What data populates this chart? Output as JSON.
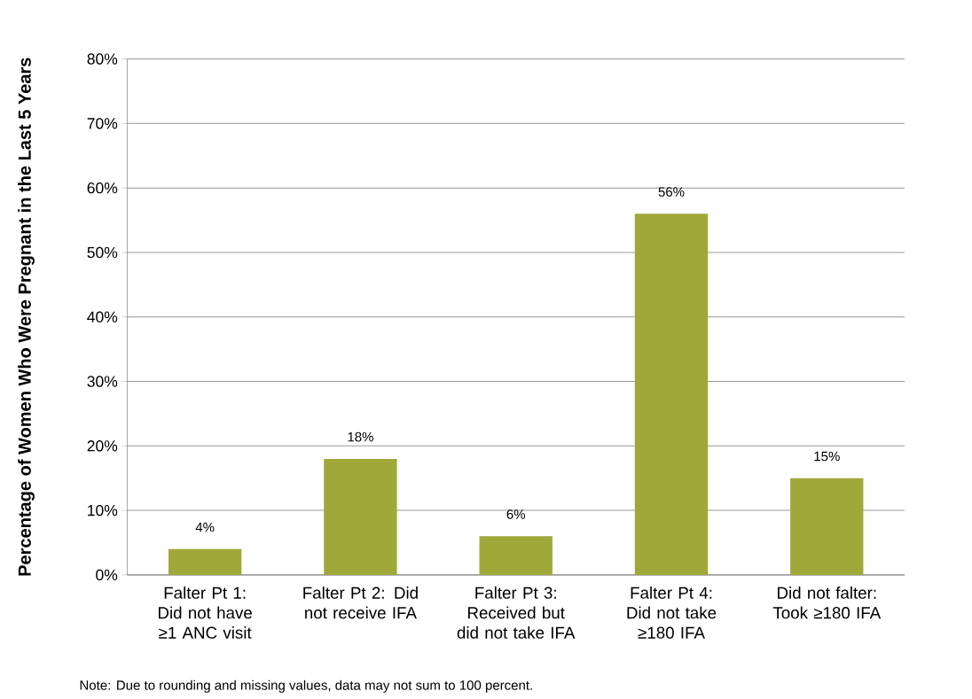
{
  "chart_data": {
    "type": "bar",
    "categories": [
      "Falter Pt 1: Did not have ≥1 ANC visit",
      "Falter Pt 2: Did not receive IFA",
      "Falter Pt 3: Received but did not take IFA",
      "Falter Pt 4: Did not take ≥180 IFA",
      "Did not falter: Took ≥180 IFA"
    ],
    "values": [
      4,
      18,
      6,
      56,
      15
    ],
    "value_labels": [
      "4%",
      "18%",
      "6%",
      "56%",
      "15%"
    ],
    "color": "#a0a83a",
    "ylabel": "Percentage of Women Who Were Pregnant in the Last 5 Years",
    "ylim": [
      0,
      80
    ],
    "yticks": [
      {
        "value": 0,
        "label": "0%"
      },
      {
        "value": 10,
        "label": "10%"
      },
      {
        "value": 20,
        "label": "20%"
      },
      {
        "value": 30,
        "label": "30%"
      },
      {
        "value": 40,
        "label": "40%"
      },
      {
        "value": 50,
        "label": "50%"
      },
      {
        "value": 60,
        "label": "60%"
      },
      {
        "value": 70,
        "label": "70%"
      },
      {
        "value": 80,
        "label": "80%"
      }
    ],
    "grid": "y",
    "annotations": [
      "Note: Due to rounding and missing values, data may not sum to 100 percent."
    ]
  }
}
